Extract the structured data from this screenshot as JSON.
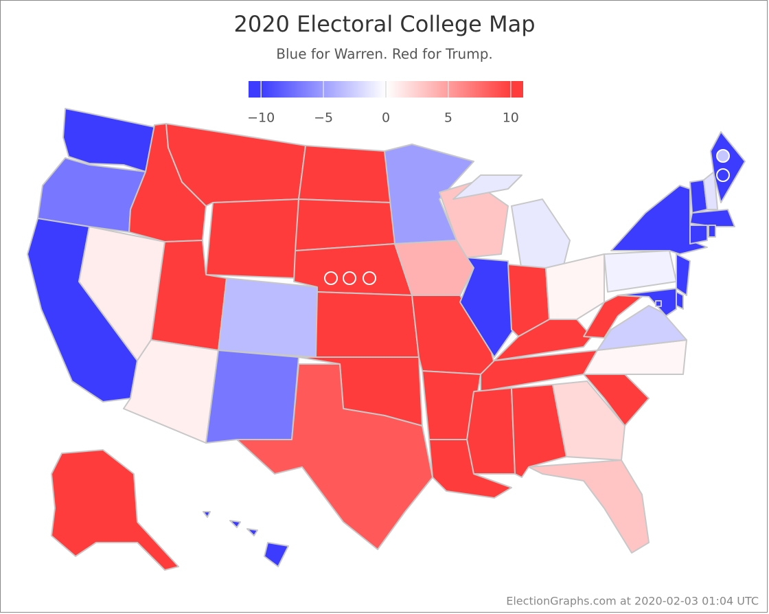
{
  "chart_data": {
    "type": "choropleth",
    "title": "2020 Electoral College Map",
    "subtitle": "Blue for Warren. Red for Trump.",
    "footer": "ElectionGraphs.com at 2020-02-03 01:04 UTC",
    "colors": {
      "negative": "#3c3cff",
      "zero": "#ffffff",
      "positive": "#ff3c3c"
    },
    "colorbar_lim": [
      -11,
      11
    ],
    "colorbar_ticks": [
      {
        "value": -10,
        "label": "−10"
      },
      {
        "value": -5,
        "label": "−5"
      },
      0,
      5,
      10
    ],
    "state_margins": [
      -10,
      -7,
      -10,
      1,
      10,
      10,
      10,
      10,
      0.8,
      -3.5,
      -7,
      10,
      10,
      10,
      10,
      10,
      8.5,
      -5,
      4,
      10,
      10,
      10,
      3,
      -10,
      -1.2,
      10,
      0.5,
      10,
      10,
      10,
      10,
      2,
      3,
      10,
      0.4,
      -2.5,
      10,
      -0.7,
      -10,
      -10,
      -10,
      -10,
      -10,
      -10,
      -1.5,
      -10,
      -10,
      -10,
      -10,
      10,
      -10
    ],
    "district_margins": [
      10,
      10,
      10,
      -3,
      -10
    ]
  }
}
